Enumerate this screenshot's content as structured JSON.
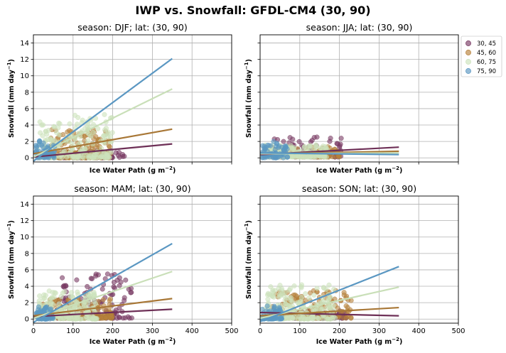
{
  "chart_data": {
    "suptitle": "IWP vs. Snowfall: GFDL-CM4  (30, 90)",
    "type": "scatter",
    "xlabel": "Ice Water Path (g m",
    "xlabel_sup": "−2",
    "xlabel_end": ")",
    "ylabel": "Snowfall (mm day",
    "ylabel_sup": "−1",
    "ylabel_end": ")",
    "xlim": [
      0,
      500
    ],
    "ylim": [
      -0.5,
      15
    ],
    "xticks": [
      0,
      100,
      200,
      300,
      400,
      500
    ],
    "yticks": [
      0,
      2,
      4,
      6,
      8,
      10,
      12,
      14
    ],
    "grid": true,
    "legend": {
      "placement": "outside-right",
      "entries": [
        {
          "label": "30, 45",
          "color": "#7a3b64"
        },
        {
          "label": "45, 60",
          "color": "#b8823c"
        },
        {
          "label": "60, 75",
          "color": "#cde3bd"
        },
        {
          "label": "75, 90",
          "color": "#5a97c2"
        }
      ]
    },
    "panels": [
      {
        "title": "season: DJF; lat: (30, 90)",
        "series": [
          {
            "name": "30, 45",
            "color": "#7a3b64",
            "line_color": "#6e3057",
            "fit": {
              "x": [
                0,
                350
              ],
              "y": [
                0.1,
                1.7
              ]
            },
            "cloud": {
              "xmin": 60,
              "xmax": 230,
              "ymin": 0,
              "ymax": 0.9,
              "n": 90
            }
          },
          {
            "name": "45, 60",
            "color": "#b8823c",
            "line_color": "#a87736",
            "fit": {
              "x": [
                0,
                350
              ],
              "y": [
                0.5,
                3.5
              ]
            },
            "cloud": {
              "xmin": 40,
              "xmax": 195,
              "ymin": 0,
              "ymax": 3.5,
              "n": 170
            }
          },
          {
            "name": "60, 75",
            "color": "#cde3bd",
            "line_color": "#c9dfb8",
            "fit": {
              "x": [
                0,
                350
              ],
              "y": [
                0.1,
                8.4
              ]
            },
            "cloud": {
              "xmin": 10,
              "xmax": 200,
              "ymin": 0,
              "ymax": 5.3,
              "n": 200
            }
          },
          {
            "name": "75, 90",
            "color": "#5a97c2",
            "line_color": "#5a97c2",
            "fit": {
              "x": [
                0,
                350
              ],
              "y": [
                -0.4,
                12.1
              ]
            },
            "cloud": {
              "xmin": 5,
              "xmax": 55,
              "ymin": 0,
              "ymax": 2.2,
              "n": 60
            }
          }
        ]
      },
      {
        "title": "season: JJA; lat: (30, 90)",
        "series": [
          {
            "name": "30, 45",
            "color": "#7a3b64",
            "line_color": "#6e3057",
            "fit": {
              "x": [
                0,
                350
              ],
              "y": [
                0.4,
                1.3
              ]
            },
            "cloud": {
              "xmin": 30,
              "xmax": 210,
              "ymin": 0.1,
              "ymax": 2.7,
              "n": 90
            }
          },
          {
            "name": "45, 60",
            "color": "#b8823c",
            "line_color": "#a87736",
            "fit": {
              "x": [
                0,
                350
              ],
              "y": [
                0.5,
                0.8
              ]
            },
            "cloud": {
              "xmin": 20,
              "xmax": 200,
              "ymin": 0.1,
              "ymax": 1.4,
              "n": 110
            }
          },
          {
            "name": "60, 75",
            "color": "#cde3bd",
            "line_color": "#c9dfb8",
            "fit": {
              "x": [
                0,
                350
              ],
              "y": [
                0.5,
                0.6
              ]
            },
            "cloud": {
              "xmin": 5,
              "xmax": 170,
              "ymin": 0.1,
              "ymax": 1.6,
              "n": 180
            }
          },
          {
            "name": "75, 90",
            "color": "#5a97c2",
            "line_color": "#5a97c2",
            "fit": {
              "x": [
                0,
                350
              ],
              "y": [
                0.6,
                0.4
              ]
            },
            "cloud": {
              "xmin": 5,
              "xmax": 70,
              "ymin": 0,
              "ymax": 2.0,
              "n": 70
            }
          }
        ]
      },
      {
        "title": "season: MAM; lat: (30, 90)",
        "series": [
          {
            "name": "30, 45",
            "color": "#7a3b64",
            "line_color": "#6e3057",
            "fit": {
              "x": [
                0,
                350
              ],
              "y": [
                0.3,
                1.2
              ]
            },
            "cloud": {
              "xmin": 60,
              "xmax": 250,
              "ymin": 0.1,
              "ymax": 5.5,
              "n": 130
            }
          },
          {
            "name": "45, 60",
            "color": "#b8823c",
            "line_color": "#a87736",
            "fit": {
              "x": [
                0,
                350
              ],
              "y": [
                0.4,
                2.5
              ]
            },
            "cloud": {
              "xmin": 20,
              "xmax": 200,
              "ymin": 0.1,
              "ymax": 2.5,
              "n": 150
            }
          },
          {
            "name": "60, 75",
            "color": "#cde3bd",
            "line_color": "#c9dfb8",
            "fit": {
              "x": [
                0,
                350
              ],
              "y": [
                0.1,
                5.8
              ]
            },
            "cloud": {
              "xmin": 10,
              "xmax": 160,
              "ymin": 0,
              "ymax": 3.5,
              "n": 180
            }
          },
          {
            "name": "75, 90",
            "color": "#5a97c2",
            "line_color": "#5a97c2",
            "fit": {
              "x": [
                0,
                350
              ],
              "y": [
                -0.4,
                9.2
              ]
            },
            "cloud": {
              "xmin": 5,
              "xmax": 50,
              "ymin": 0,
              "ymax": 1.5,
              "n": 60
            }
          }
        ]
      },
      {
        "title": "season: SON; lat: (30, 90)",
        "series": [
          {
            "name": "30, 45",
            "color": "#7a3b64",
            "line_color": "#6e3057",
            "fit": {
              "x": [
                0,
                350
              ],
              "y": [
                0.8,
                0.4
              ]
            },
            "cloud": {
              "xmin": 80,
              "xmax": 220,
              "ymin": 0.1,
              "ymax": 1.0,
              "n": 80
            }
          },
          {
            "name": "45, 60",
            "color": "#b8823c",
            "line_color": "#a87736",
            "fit": {
              "x": [
                0,
                350
              ],
              "y": [
                0.4,
                1.4
              ]
            },
            "cloud": {
              "xmin": 30,
              "xmax": 230,
              "ymin": 0.1,
              "ymax": 3.5,
              "n": 160
            }
          },
          {
            "name": "60, 75",
            "color": "#cde3bd",
            "line_color": "#c9dfb8",
            "fit": {
              "x": [
                0,
                350
              ],
              "y": [
                0.1,
                3.9
              ]
            },
            "cloud": {
              "xmin": 10,
              "xmax": 190,
              "ymin": 0,
              "ymax": 4.2,
              "n": 190
            }
          },
          {
            "name": "75, 90",
            "color": "#5a97c2",
            "line_color": "#5a97c2",
            "fit": {
              "x": [
                0,
                350
              ],
              "y": [
                -0.3,
                6.4
              ]
            },
            "cloud": {
              "xmin": 5,
              "xmax": 55,
              "ymin": 0,
              "ymax": 1.6,
              "n": 60
            }
          }
        ]
      }
    ]
  }
}
